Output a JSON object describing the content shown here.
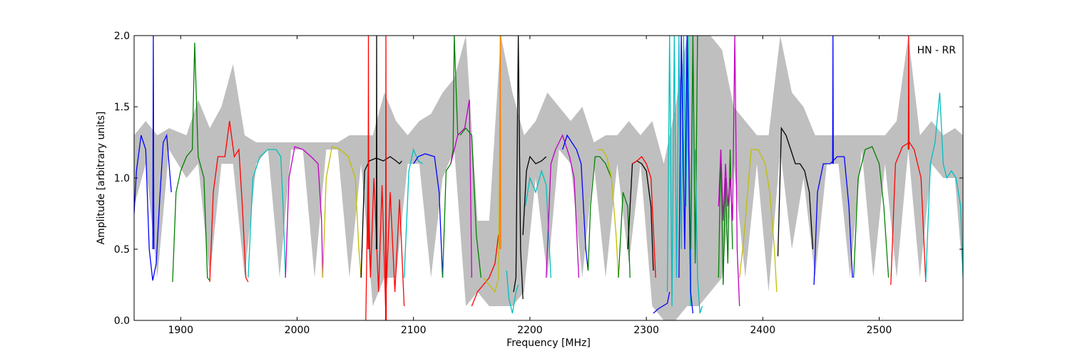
{
  "chart_data": {
    "type": "line",
    "title": "",
    "xlabel": "Frequency [MHz]",
    "ylabel": "Amplitude [arbitrary units]",
    "annotation": "HN - RR",
    "annotation_position": "top-right",
    "xlim": [
      1860,
      2572
    ],
    "ylim": [
      0.0,
      2.0
    ],
    "xticks": [
      1900,
      2000,
      2100,
      2200,
      2300,
      2400,
      2500
    ],
    "yticks": [
      0.0,
      0.5,
      1.0,
      1.5,
      2.0
    ],
    "xtick_labels": [
      "1900",
      "2000",
      "2100",
      "2200",
      "2300",
      "2400",
      "2500"
    ],
    "ytick_labels": [
      "0.0",
      "0.5",
      "1.0",
      "1.5",
      "2.0"
    ],
    "grid": false,
    "legend": false,
    "envelope_color": "#bfbfbf",
    "envelope": {
      "x": [
        1860,
        1870,
        1880,
        1890,
        1905,
        1915,
        1925,
        1935,
        1945,
        1955,
        1965,
        1975,
        1985,
        1995,
        2005,
        2015,
        2025,
        2035,
        2045,
        2055,
        2065,
        2075,
        2085,
        2095,
        2105,
        2115,
        2125,
        2135,
        2145,
        2155,
        2165,
        2175,
        2185,
        2195,
        2205,
        2215,
        2225,
        2235,
        2245,
        2255,
        2265,
        2275,
        2285,
        2295,
        2305,
        2315,
        2325,
        2335,
        2345,
        2355,
        2365,
        2375,
        2385,
        2395,
        2405,
        2415,
        2425,
        2435,
        2445,
        2455,
        2465,
        2475,
        2485,
        2495,
        2505,
        2515,
        2525,
        2535,
        2545,
        2555,
        2565,
        2572
      ],
      "upper": [
        1.3,
        1.4,
        1.3,
        1.35,
        1.3,
        1.55,
        1.35,
        1.5,
        1.8,
        1.3,
        1.25,
        1.25,
        1.25,
        1.25,
        1.25,
        1.25,
        1.25,
        1.25,
        1.3,
        1.3,
        1.3,
        1.6,
        1.4,
        1.3,
        1.4,
        1.45,
        1.6,
        1.7,
        2.0,
        0.7,
        0.7,
        2.0,
        1.6,
        1.3,
        1.4,
        1.6,
        1.5,
        1.4,
        1.5,
        1.25,
        1.3,
        1.3,
        1.4,
        1.3,
        1.4,
        1.1,
        1.5,
        2.0,
        2.0,
        2.0,
        1.9,
        1.5,
        1.4,
        1.3,
        1.3,
        2.0,
        1.6,
        1.5,
        1.3,
        1.3,
        1.3,
        1.3,
        1.3,
        1.3,
        1.3,
        1.4,
        2.0,
        1.3,
        1.4,
        1.3,
        1.35,
        1.3
      ],
      "lower": [
        0.8,
        1.1,
        0.3,
        1.2,
        1.0,
        1.1,
        0.3,
        1.1,
        1.1,
        0.3,
        1.1,
        1.2,
        0.3,
        1.2,
        1.2,
        0.3,
        1.2,
        1.2,
        0.3,
        1.1,
        0.1,
        0.3,
        0.3,
        1.1,
        1.1,
        0.3,
        1.0,
        1.2,
        0.1,
        0.2,
        0.1,
        0.1,
        0.1,
        0.2,
        1.0,
        0.3,
        1.2,
        1.1,
        0.3,
        1.1,
        0.3,
        1.1,
        0.4,
        1.1,
        0.1,
        0.0,
        0.0,
        0.1,
        0.1,
        0.2,
        0.3,
        1.1,
        0.3,
        1.1,
        0.2,
        1.2,
        0.5,
        1.0,
        0.3,
        1.1,
        1.1,
        0.3,
        1.2,
        0.3,
        1.1,
        0.3,
        1.2,
        0.3,
        1.1,
        1.0,
        1.0,
        0.3
      ]
    },
    "series": [
      {
        "color": "#0000ff",
        "x": [
          1860,
          1862,
          1866,
          1870,
          1873,
          1876,
          1879,
          1882,
          1885,
          1888,
          1891,
          1892
        ],
        "y": [
          0.75,
          1.05,
          1.3,
          1.2,
          0.5,
          0.28,
          0.4,
          0.85,
          1.25,
          1.3,
          1.0,
          0.9
        ]
      },
      {
        "color": "#0000ff",
        "x": [
          1876,
          1876.5,
          1877
        ],
        "y": [
          0.5,
          2.0,
          0.5
        ]
      },
      {
        "color": "#008000",
        "x": [
          1893,
          1896,
          1900,
          1905,
          1910,
          1912,
          1915,
          1920,
          1923,
          1925
        ],
        "y": [
          0.27,
          0.9,
          1.05,
          1.15,
          1.2,
          1.95,
          1.15,
          1.0,
          0.3,
          0.28
        ]
      },
      {
        "color": "#ff0000",
        "x": [
          1925,
          1928,
          1932,
          1938,
          1942,
          1946,
          1950,
          1953,
          1956,
          1958
        ],
        "y": [
          0.27,
          0.9,
          1.15,
          1.15,
          1.4,
          1.15,
          1.2,
          0.8,
          0.3,
          0.27
        ]
      },
      {
        "color": "#00bfbf",
        "x": [
          1958,
          1962,
          1968,
          1975,
          1982,
          1986,
          1988,
          1990
        ],
        "y": [
          0.3,
          1.0,
          1.15,
          1.2,
          1.2,
          1.15,
          0.8,
          0.3
        ]
      },
      {
        "color": "#bf00bf",
        "x": [
          1990,
          1993,
          1998,
          2005,
          2012,
          2018,
          2021,
          2022
        ],
        "y": [
          0.3,
          1.0,
          1.22,
          1.2,
          1.15,
          1.1,
          0.7,
          0.3
        ]
      },
      {
        "color": "#bfbf00",
        "x": [
          2022,
          2025,
          2030,
          2037,
          2044,
          2050,
          2053,
          2055
        ],
        "y": [
          0.3,
          1.0,
          1.22,
          1.2,
          1.15,
          1.0,
          0.5,
          0.3
        ]
      },
      {
        "color": "#000000",
        "x": [
          2055,
          2058,
          2062,
          2068,
          2074,
          2080,
          2085,
          2088,
          2090
        ],
        "y": [
          0.3,
          1.05,
          1.12,
          1.14,
          1.12,
          1.15,
          1.12,
          1.1,
          1.12
        ]
      },
      {
        "color": "#ff0000",
        "x": [
          2059,
          2061,
          2063,
          2066,
          2070,
          2073,
          2076,
          2080,
          2084,
          2088,
          2092
        ],
        "y": [
          0.0,
          1.05,
          0.3,
          1.0,
          0.2,
          0.95,
          0.1,
          0.9,
          0.2,
          0.85,
          0.1
        ]
      },
      {
        "color": "#ff0000",
        "x": [
          2061,
          2061.3,
          2061.6
        ],
        "y": [
          0.5,
          2.0,
          0.5
        ]
      },
      {
        "color": "#000000",
        "x": [
          2068,
          2068.3,
          2068.6
        ],
        "y": [
          0.5,
          2.0,
          0.5
        ]
      },
      {
        "color": "#ff0000",
        "x": [
          2076,
          2076.3,
          2076.6
        ],
        "y": [
          0.0,
          2.0,
          0.0
        ]
      },
      {
        "color": "#00bfbf",
        "x": [
          2092,
          2096,
          2100,
          2104,
          2108
        ],
        "y": [
          0.3,
          1.05,
          1.2,
          1.12,
          1.1
        ]
      },
      {
        "color": "#0000ff",
        "x": [
          2100,
          2104,
          2110,
          2118,
          2122,
          2125
        ],
        "y": [
          1.1,
          1.15,
          1.17,
          1.15,
          0.9,
          0.3
        ]
      },
      {
        "color": "#008000",
        "x": [
          2125,
          2128,
          2132,
          2134,
          2135,
          2138
        ],
        "y": [
          0.3,
          1.05,
          1.1,
          1.2,
          2.0,
          1.3
        ]
      },
      {
        "color": "#bf00bf",
        "x": [
          2132,
          2138,
          2144,
          2148,
          2150
        ],
        "y": [
          1.1,
          1.3,
          1.35,
          1.55,
          0.3
        ]
      },
      {
        "color": "#008000",
        "x": [
          2140,
          2145,
          2150,
          2154,
          2158
        ],
        "y": [
          1.3,
          1.35,
          1.3,
          0.6,
          0.3
        ]
      },
      {
        "color": "#ff0000",
        "x": [
          2150,
          2155,
          2160,
          2165,
          2170,
          2173
        ],
        "y": [
          0.1,
          0.2,
          0.25,
          0.3,
          0.4,
          0.6
        ]
      },
      {
        "color": "#bfbf00",
        "x": [
          2160,
          2165,
          2170,
          2173,
          2175
        ],
        "y": [
          0.3,
          0.25,
          0.2,
          0.3,
          2.0
        ]
      },
      {
        "color": "#ff7f00",
        "x": [
          2174,
          2174.5,
          2175
        ],
        "y": [
          0.5,
          2.0,
          0.5
        ]
      },
      {
        "color": "#00bfbf",
        "x": [
          2180,
          2182,
          2185,
          2188,
          2190
        ],
        "y": [
          0.35,
          0.15,
          0.05,
          0.2,
          0.25
        ]
      },
      {
        "color": "#000000",
        "x": [
          2186,
          2188,
          2190,
          2192,
          2194
        ],
        "y": [
          0.2,
          0.3,
          2.0,
          0.5,
          0.15
        ]
      },
      {
        "color": "#000000",
        "x": [
          2194,
          2197,
          2200,
          2205,
          2210,
          2214
        ],
        "y": [
          0.6,
          1.05,
          1.15,
          1.1,
          1.12,
          1.15
        ]
      },
      {
        "color": "#00bfbf",
        "x": [
          2196,
          2200,
          2205,
          2210,
          2214,
          2218
        ],
        "y": [
          0.8,
          1.0,
          0.9,
          1.05,
          0.95,
          0.3
        ]
      },
      {
        "color": "#bf00bf",
        "x": [
          2214,
          2218,
          2222,
          2228,
          2234,
          2238,
          2242
        ],
        "y": [
          0.3,
          1.1,
          1.2,
          1.3,
          1.15,
          1.0,
          0.3
        ]
      },
      {
        "color": "#0000ff",
        "x": [
          2228,
          2232,
          2236,
          2240,
          2244,
          2248,
          2250
        ],
        "y": [
          1.2,
          1.3,
          1.25,
          1.2,
          1.1,
          0.5,
          0.35
        ]
      },
      {
        "color": "#008000",
        "x": [
          2250,
          2252,
          2256,
          2260,
          2265,
          2270
        ],
        "y": [
          0.35,
          0.8,
          1.15,
          1.15,
          1.1,
          1.0
        ]
      },
      {
        "color": "#bfbf00",
        "x": [
          2258,
          2262,
          2266,
          2270,
          2274,
          2276
        ],
        "y": [
          1.2,
          1.2,
          1.15,
          1.0,
          0.6,
          0.3
        ]
      },
      {
        "color": "#008000",
        "x": [
          2276,
          2280,
          2284,
          2286
        ],
        "y": [
          0.3,
          0.9,
          0.8,
          0.3
        ]
      },
      {
        "color": "#000000",
        "x": [
          2284,
          2288,
          2292,
          2296,
          2300,
          2304,
          2306
        ],
        "y": [
          0.5,
          1.1,
          1.12,
          1.1,
          1.05,
          0.8,
          0.35
        ]
      },
      {
        "color": "#ff0000",
        "x": [
          2288,
          2292,
          2296,
          2300,
          2304,
          2308
        ],
        "y": [
          1.1,
          1.12,
          1.15,
          1.1,
          1.0,
          0.3
        ]
      },
      {
        "color": "#0000ff",
        "x": [
          2306,
          2310,
          2314,
          2318,
          2320
        ],
        "y": [
          0.05,
          0.08,
          0.1,
          0.12,
          0.2
        ]
      },
      {
        "color": "#00bfbf",
        "x": [
          2318,
          2320,
          2322,
          2324,
          2326,
          2328,
          2330,
          2332,
          2334,
          2336,
          2338,
          2340
        ],
        "y": [
          0.2,
          2.0,
          0.1,
          2.0,
          0.3,
          2.0,
          0.5,
          2.0,
          0.8,
          2.0,
          0.1,
          2.0
        ]
      },
      {
        "color": "#0000ff",
        "x": [
          2328,
          2330,
          2333,
          2335,
          2338,
          2340
        ],
        "y": [
          0.3,
          2.0,
          0.5,
          2.0,
          0.2,
          0.05
        ]
      },
      {
        "color": "#008000",
        "x": [
          2338,
          2340,
          2342,
          2344
        ],
        "y": [
          0.5,
          2.0,
          0.4,
          2.0
        ]
      },
      {
        "color": "#00bfbf",
        "x": [
          2342,
          2344,
          2346,
          2348
        ],
        "y": [
          1.2,
          0.3,
          0.05,
          0.1
        ]
      },
      {
        "color": "#008000",
        "x": [
          2362,
          2364,
          2366,
          2368,
          2370,
          2372,
          2374
        ],
        "y": [
          0.3,
          1.2,
          0.25,
          1.0,
          0.4,
          1.2,
          0.5
        ]
      },
      {
        "color": "#bf00bf",
        "x": [
          2362,
          2364,
          2366,
          2368,
          2370,
          2372,
          2374,
          2376,
          2378,
          2380
        ],
        "y": [
          0.8,
          1.2,
          0.7,
          1.1,
          0.8,
          1.0,
          0.7,
          2.0,
          0.5,
          0.1
        ]
      },
      {
        "color": "#bfbf00",
        "x": [
          2380,
          2384,
          2390,
          2396,
          2402,
          2406,
          2410,
          2412
        ],
        "y": [
          0.3,
          0.6,
          1.2,
          1.2,
          1.1,
          0.9,
          0.5,
          0.2
        ]
      },
      {
        "color": "#000000",
        "x": [
          2413,
          2416,
          2420,
          2424,
          2428,
          2432,
          2436,
          2440,
          2443
        ],
        "y": [
          0.45,
          1.35,
          1.3,
          1.2,
          1.1,
          1.1,
          1.05,
          0.9,
          0.5
        ]
      },
      {
        "color": "#0000ff",
        "x": [
          2444,
          2447,
          2452,
          2458,
          2464,
          2470,
          2474,
          2477
        ],
        "y": [
          0.25,
          0.9,
          1.1,
          1.1,
          1.15,
          1.15,
          0.8,
          0.3
        ]
      },
      {
        "color": "#0000ff",
        "x": [
          2460,
          2460.3,
          2460.6
        ],
        "y": [
          1.1,
          2.0,
          1.1
        ]
      },
      {
        "color": "#008000",
        "x": [
          2478,
          2482,
          2488,
          2494,
          2500,
          2504,
          2508
        ],
        "y": [
          0.3,
          1.0,
          1.2,
          1.22,
          1.1,
          0.8,
          0.3
        ]
      },
      {
        "color": "#ff0000",
        "x": [
          2510,
          2514,
          2520,
          2526,
          2530,
          2536,
          2540
        ],
        "y": [
          0.25,
          1.1,
          1.22,
          1.25,
          1.2,
          1.0,
          0.27
        ]
      },
      {
        "color": "#ff0000",
        "x": [
          2525,
          2525.3,
          2525.6
        ],
        "y": [
          1.2,
          2.0,
          1.2
        ]
      },
      {
        "color": "#00bfbf",
        "x": [
          2540,
          2544,
          2548,
          2552,
          2555,
          2558,
          2562,
          2566,
          2570,
          2572
        ],
        "y": [
          0.28,
          1.1,
          1.25,
          1.6,
          1.1,
          1.0,
          1.05,
          1.0,
          0.8,
          0.3
        ]
      }
    ]
  }
}
